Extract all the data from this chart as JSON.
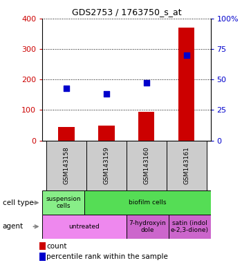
{
  "title": "GDS2753 / 1763750_s_at",
  "samples": [
    "GSM143158",
    "GSM143159",
    "GSM143160",
    "GSM143161"
  ],
  "counts": [
    45,
    48,
    95,
    370
  ],
  "percentile_ranks_pct": [
    43,
    38,
    47,
    70
  ],
  "ylim_left": [
    0,
    400
  ],
  "ylim_right": [
    0,
    100
  ],
  "yticks_left": [
    0,
    100,
    200,
    300,
    400
  ],
  "yticks_right": [
    0,
    25,
    50,
    75,
    100
  ],
  "ytick_labels_right": [
    "0",
    "25",
    "50",
    "75",
    "100%"
  ],
  "bar_color": "#cc0000",
  "dot_color": "#0000cc",
  "sample_box_color": "#cccccc",
  "cell_type_cells": [
    {
      "text": "suspension\ncells",
      "span": 1,
      "color": "#88ee88"
    },
    {
      "text": "biofilm cells",
      "span": 3,
      "color": "#55dd55"
    }
  ],
  "agent_cells": [
    {
      "text": "untreated",
      "span": 2,
      "color": "#ee88ee"
    },
    {
      "text": "7-hydroxyin\ndole",
      "span": 1,
      "color": "#cc66cc"
    },
    {
      "text": "satin (indol\ne-2,3-dione)",
      "span": 1,
      "color": "#cc66cc"
    }
  ],
  "legend_items": [
    {
      "color": "#cc0000",
      "label": "count"
    },
    {
      "color": "#0000cc",
      "label": "percentile rank within the sample"
    }
  ]
}
